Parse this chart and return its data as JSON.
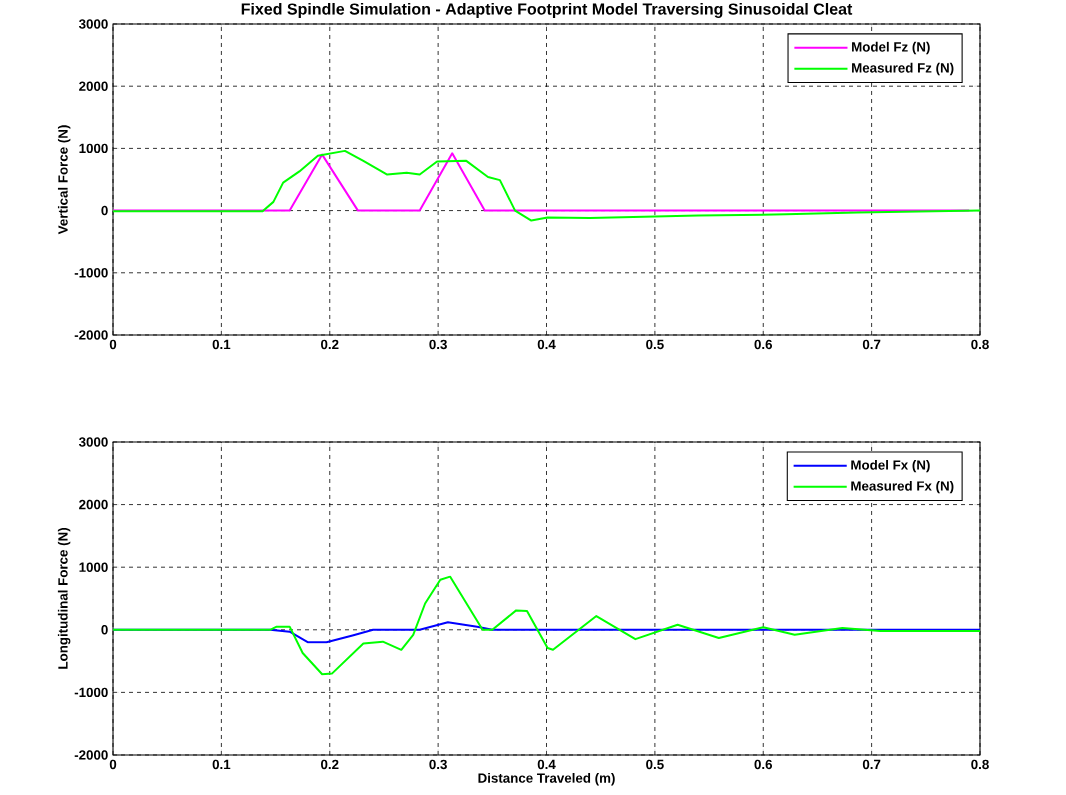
{
  "chart_data": [
    {
      "type": "line",
      "title": "Fixed Spindle Simulation - Adaptive Footprint Model Traversing Sinusoidal Cleat",
      "ylabel": "Vertical Force (N)",
      "xlim": [
        0,
        0.8
      ],
      "ylim": [
        -2000,
        3000
      ],
      "xticks": [
        0,
        0.1,
        0.2,
        0.3,
        0.4,
        0.5,
        0.6,
        0.7,
        0.8
      ],
      "yticks": [
        -2000,
        -1000,
        0,
        1000,
        2000,
        3000
      ],
      "grid": true,
      "legend": "top right",
      "line_style": "solid",
      "marker": "none",
      "series": [
        {
          "name": "Model Fz (N)",
          "color": "#ff00ff",
          "x": [
            0,
            0.163,
            0.193,
            0.226,
            0.283,
            0.313,
            0.343,
            0.79
          ],
          "values": [
            0,
            0,
            900,
            0,
            0,
            920,
            0,
            0
          ]
        },
        {
          "name": "Measured Fz (N)",
          "color": "#00ff00",
          "x": [
            0,
            0.138,
            0.148,
            0.157,
            0.172,
            0.189,
            0.214,
            0.231,
            0.253,
            0.271,
            0.283,
            0.299,
            0.326,
            0.346,
            0.357,
            0.371,
            0.386,
            0.401,
            0.44,
            0.54,
            0.621,
            0.687,
            0.8
          ],
          "values": [
            -10,
            -10,
            140,
            450,
            630,
            880,
            960,
            800,
            580,
            610,
            580,
            790,
            800,
            540,
            490,
            0,
            -160,
            -110,
            -120,
            -80,
            -60,
            -30,
            0
          ]
        }
      ]
    },
    {
      "type": "line",
      "xlabel": "Distance Traveled (m)",
      "ylabel": "Longitudinal Force (N)",
      "xlim": [
        0,
        0.8
      ],
      "ylim": [
        -2000,
        3000
      ],
      "xticks": [
        0,
        0.1,
        0.2,
        0.3,
        0.4,
        0.5,
        0.6,
        0.7,
        0.8
      ],
      "yticks": [
        -2000,
        -1000,
        0,
        1000,
        2000,
        3000
      ],
      "grid": true,
      "legend": "top right",
      "line_style": "solid",
      "marker": "none",
      "series": [
        {
          "name": "Model Fx (N)",
          "color": "#0000ff",
          "x": [
            0,
            0.145,
            0.163,
            0.18,
            0.197,
            0.221,
            0.24,
            0.283,
            0.309,
            0.336,
            0.35,
            0.8
          ],
          "values": [
            0,
            0,
            -30,
            -200,
            -200,
            -90,
            0,
            0,
            120,
            50,
            0,
            0
          ]
        },
        {
          "name": "Measured Fx (N)",
          "color": "#00ff00",
          "x": [
            0,
            0.145,
            0.151,
            0.163,
            0.175,
            0.193,
            0.202,
            0.231,
            0.249,
            0.266,
            0.277,
            0.288,
            0.302,
            0.311,
            0.341,
            0.35,
            0.372,
            0.382,
            0.401,
            0.406,
            0.446,
            0.482,
            0.521,
            0.559,
            0.6,
            0.629,
            0.673,
            0.708,
            0.8
          ],
          "values": [
            0,
            0,
            50,
            50,
            -370,
            -710,
            -700,
            -220,
            -190,
            -320,
            -80,
            420,
            800,
            850,
            0,
            0,
            310,
            300,
            -290,
            -320,
            220,
            -150,
            80,
            -130,
            40,
            -80,
            30,
            -20,
            -20
          ]
        }
      ]
    }
  ]
}
